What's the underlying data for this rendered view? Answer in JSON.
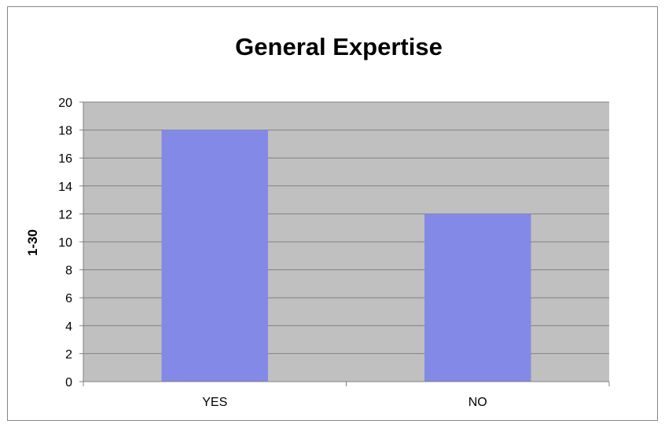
{
  "chart_data": {
    "type": "bar",
    "title": "General Expertise",
    "xlabel": "",
    "ylabel": "1-30",
    "categories": [
      "YES",
      "NO"
    ],
    "values": [
      18,
      12
    ],
    "ylim": [
      0,
      20
    ],
    "yticks": [
      "0",
      "2",
      "4",
      "6",
      "8",
      "10",
      "12",
      "14",
      "16",
      "18",
      "20"
    ],
    "grid": true,
    "legend": "none",
    "colors": {
      "bar": "#8389E6",
      "plot_background": "#C0C0C0",
      "gridline": "#808080",
      "axis": "#808080"
    }
  }
}
